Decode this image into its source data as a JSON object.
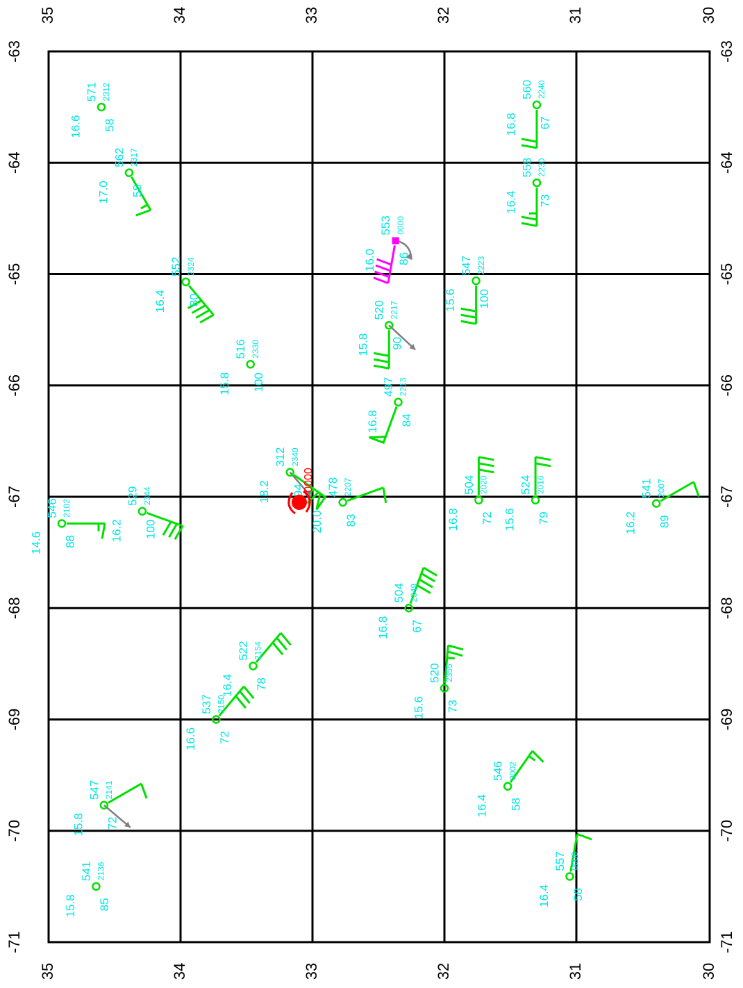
{
  "axes": {
    "lat_ticks": [
      "35",
      "34",
      "33",
      "32",
      "31",
      "30"
    ],
    "lon_ticks": [
      "-63",
      "-64",
      "-65",
      "-66",
      "-67",
      "-68",
      "-69",
      "-70",
      "-71"
    ]
  },
  "colors": {
    "grid": "#000000",
    "station": "#00e000",
    "text": "#00e5e5",
    "special": "#ff00ff",
    "storm": "#ff0000",
    "motion_arrow": "#808080"
  },
  "storm_center": {
    "lat": 33.1,
    "lon": -67.05,
    "label": "0000",
    "name": "storm-center"
  },
  "stations": [
    {
      "id": "st-571",
      "lat": 34.6,
      "lon": -63.5,
      "height": "571",
      "time": "2312",
      "temp": "16.6",
      "rh": "58",
      "wind_dir": null,
      "wind_kt": 0
    },
    {
      "id": "st-562",
      "lat": 34.39,
      "lon": -64.09,
      "height": "562",
      "time": "2317",
      "temp": "17.0",
      "rh": "58",
      "wind_dir": 240,
      "wind_kt": 15
    },
    {
      "id": "st-560",
      "lat": 31.3,
      "lon": -63.48,
      "height": "560",
      "time": "2240",
      "temp": "16.8",
      "rh": "67",
      "wind_dir": 270,
      "wind_kt": 20
    },
    {
      "id": "st-558",
      "lat": 31.3,
      "lon": -64.18,
      "height": "558",
      "time": "2230",
      "temp": "16.4",
      "rh": "73",
      "wind_dir": 270,
      "wind_kt": 25
    },
    {
      "id": "st-553",
      "lat": 32.37,
      "lon": -64.7,
      "height": "553",
      "time": "0000",
      "temp": "16.0",
      "rh": "86",
      "wind_dir": 280,
      "wind_kt": 40,
      "special": true,
      "motion": {
        "dlat": -0.12,
        "dlon": -0.17,
        "curved": true
      }
    },
    {
      "id": "st-552",
      "lat": 33.96,
      "lon": -65.07,
      "height": "552",
      "time": "2324",
      "temp": "16.4",
      "rh": "80",
      "wind_dir": 230,
      "wind_kt": 40
    },
    {
      "id": "st-547a",
      "lat": 31.76,
      "lon": -65.06,
      "height": "547",
      "time": "2223",
      "temp": "15.6",
      "rh": "100",
      "wind_dir": 270,
      "wind_kt": 30
    },
    {
      "id": "st-520",
      "lat": 32.42,
      "lon": -65.46,
      "height": "520",
      "time": "2217",
      "temp": "15.8",
      "rh": "90",
      "wind_dir": 270,
      "wind_kt": 30,
      "motion": {
        "dlat": -0.2,
        "dlon": -0.22
      }
    },
    {
      "id": "st-516",
      "lat": 33.47,
      "lon": -65.81,
      "height": "516",
      "time": "2330",
      "temp": "15.8",
      "rh": "100",
      "wind_dir": null,
      "wind_kt": 0
    },
    {
      "id": "st-497",
      "lat": 32.35,
      "lon": -66.15,
      "height": "497",
      "time": "2213",
      "temp": "16.8",
      "rh": "84",
      "wind_dir": 290,
      "wind_kt": 50
    },
    {
      "id": "st-312",
      "lat": 33.17,
      "lon": -66.78,
      "height": "312",
      "time": "2340",
      "temp": "18.2",
      "rh": "94",
      "wind_dir": 215,
      "wind_kt": 65,
      "motion": {
        "dlat": -0.16,
        "dlon": -0.22
      }
    },
    {
      "id": "st-478",
      "lat": 32.77,
      "lon": -67.05,
      "height": "478",
      "time": "2207",
      "temp": "20.0",
      "rh": "83",
      "wind_dir": 160,
      "wind_kt": 10
    },
    {
      "id": "st-546a",
      "lat": 34.9,
      "lon": -67.24,
      "height": "546",
      "time": "2102",
      "temp": "14.6",
      "rh": "88",
      "wind_dir": 180,
      "wind_kt": 15
    },
    {
      "id": "st-529",
      "lat": 34.29,
      "lon": -67.13,
      "height": "529",
      "time": "2344",
      "temp": "16.2",
      "rh": "100",
      "wind_dir": 200,
      "wind_kt": 30
    },
    {
      "id": "st-504a",
      "lat": 31.74,
      "lon": -67.03,
      "height": "504",
      "time": "2020",
      "temp": "16.8",
      "rh": "72",
      "wind_dir": 90,
      "wind_kt": 30
    },
    {
      "id": "st-524",
      "lat": 31.31,
      "lon": -67.03,
      "height": "524",
      "time": "2016",
      "temp": "15.6",
      "rh": "79",
      "wind_dir": 90,
      "wind_kt": 20
    },
    {
      "id": "st-541a",
      "lat": 30.4,
      "lon": -67.06,
      "height": "541",
      "time": "2007",
      "temp": "16.2",
      "rh": "89",
      "wind_dir": 150,
      "wind_kt": 10
    },
    {
      "id": "st-504b",
      "lat": 32.27,
      "lon": -68.0,
      "height": "504",
      "time": "2349",
      "temp": "16.8",
      "rh": "67",
      "wind_dir": 110,
      "wind_kt": 40
    },
    {
      "id": "st-522",
      "lat": 33.45,
      "lon": -68.52,
      "height": "522",
      "time": "2154",
      "temp": "16.4",
      "rh": "78",
      "wind_dir": 130,
      "wind_kt": 30
    },
    {
      "id": "st-537",
      "lat": 33.73,
      "lon": -69.0,
      "height": "537",
      "time": "2150",
      "temp": "16.6",
      "rh": "72",
      "wind_dir": 130,
      "wind_kt": 30
    },
    {
      "id": "st-520b",
      "lat": 32.0,
      "lon": -68.72,
      "height": "520",
      "time": "2355",
      "temp": "15.6",
      "rh": "73",
      "wind_dir": 95,
      "wind_kt": 25
    },
    {
      "id": "st-546b",
      "lat": 31.52,
      "lon": -69.6,
      "height": "546",
      "time": "0002",
      "temp": "16.4",
      "rh": "58",
      "wind_dir": 125,
      "wind_kt": 15
    },
    {
      "id": "st-547b",
      "lat": 34.58,
      "lon": -69.77,
      "height": "547",
      "time": "2141",
      "temp": "15.8",
      "rh": "72",
      "wind_dir": 150,
      "wind_kt": 10,
      "motion": {
        "dlat": -0.2,
        "dlon": -0.2
      }
    },
    {
      "id": "st-541b",
      "lat": 34.64,
      "lon": -70.5,
      "height": "541",
      "time": "2136",
      "temp": "15.8",
      "rh": "85",
      "wind_dir": null,
      "wind_kt": 0
    },
    {
      "id": "st-557",
      "lat": 31.05,
      "lon": -70.41,
      "height": "557",
      "time": "0008",
      "temp": "16.4",
      "rh": "58",
      "wind_dir": 100,
      "wind_kt": 10
    }
  ]
}
